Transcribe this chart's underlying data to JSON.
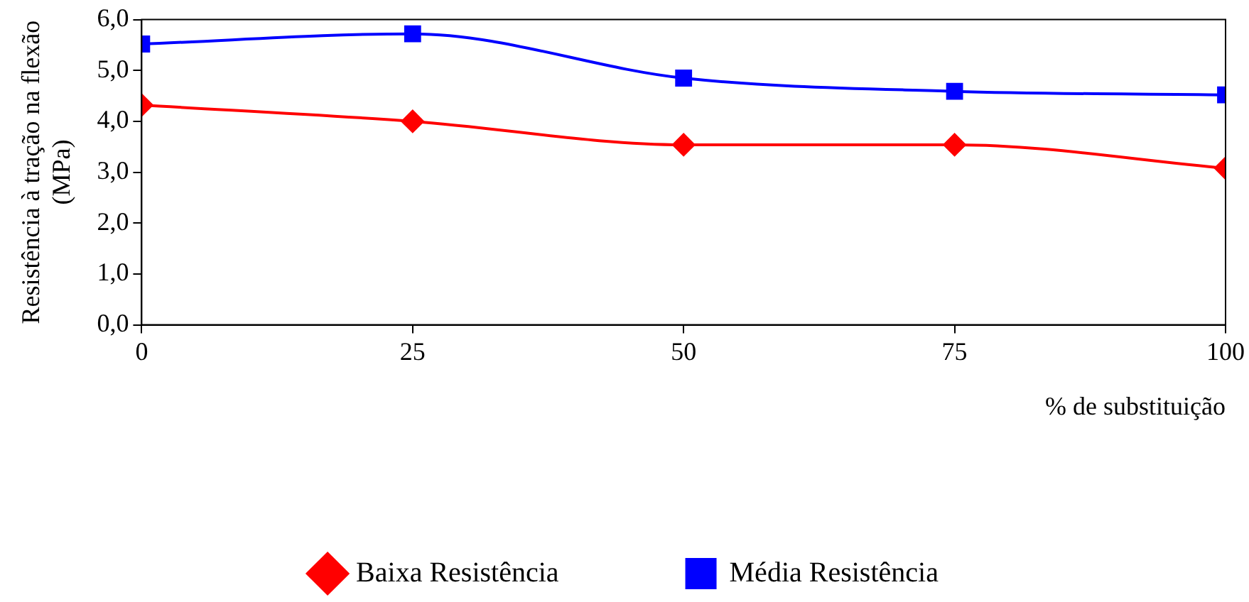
{
  "chart_data": {
    "type": "line",
    "xlabel": "% de substituição",
    "ylabel": "Resistência à tração na flexão (MPa)",
    "x": [
      0,
      25,
      50,
      75,
      100
    ],
    "xlim": [
      0,
      100
    ],
    "xticks": [
      0,
      25,
      50,
      75,
      100
    ],
    "ylim": [
      0,
      6
    ],
    "yticks": [
      {
        "value": 0,
        "label": "0,0"
      },
      {
        "value": 1,
        "label": "1,0"
      },
      {
        "value": 2,
        "label": "2,0"
      },
      {
        "value": 3,
        "label": "3,0"
      },
      {
        "value": 4,
        "label": "4,0"
      },
      {
        "value": 5,
        "label": "5,0"
      },
      {
        "value": 6,
        "label": "6,0"
      }
    ],
    "grid": false,
    "legend": "bottom",
    "series": [
      {
        "name": "Baixa Resistência",
        "color": "#ff0000",
        "marker": "diamond",
        "values": [
          4.32,
          4.0,
          3.54,
          3.54,
          3.08
        ]
      },
      {
        "name": "Média Resistência",
        "color": "#0000ff",
        "marker": "square",
        "values": [
          5.52,
          5.72,
          4.85,
          4.59,
          4.52
        ]
      }
    ]
  }
}
